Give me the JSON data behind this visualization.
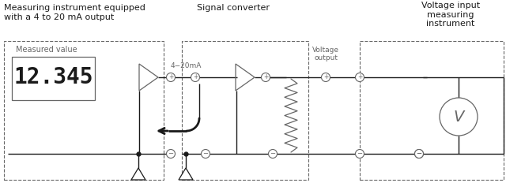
{
  "bg_color": "#ffffff",
  "line_color": "#1a1a1a",
  "gray_color": "#666666",
  "title1": "Measuring instrument equipped",
  "title2": "with a 4 to 20 mA output",
  "title3": "Signal converter",
  "title4": "Voltage input\nmeasuring\ninstrument",
  "label_measured": "Measured value",
  "label_display": "12.345",
  "label_4_20mA": "4−20mA",
  "label_voltage_output": "Voltage\noutput",
  "fig_width": 6.4,
  "fig_height": 2.46,
  "dpi": 100
}
